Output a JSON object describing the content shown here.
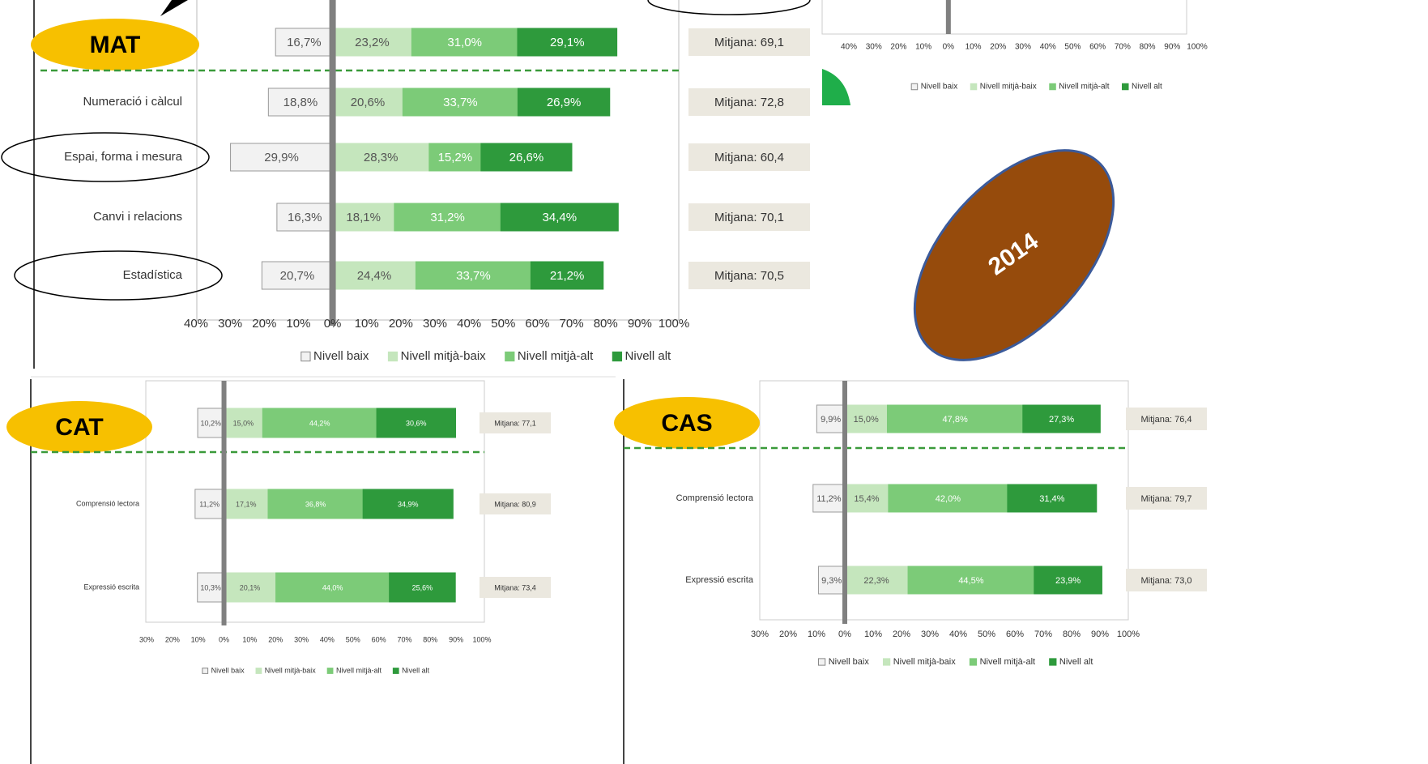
{
  "year": "2014",
  "chart_data": [
    {
      "type": "bar",
      "badge": "MAT",
      "categories": [
        null,
        "Numeració i càlcul",
        "Espai, forma i mesura",
        "Canvi i relacions",
        "Estadística"
      ],
      "series": [
        {
          "name": "Nivell baix",
          "color": "#f2f2f2",
          "values": [
            16.7,
            18.8,
            29.9,
            16.3,
            20.7
          ],
          "value_labels": [
            "16,7%",
            "18,8%",
            "29,9%",
            "16,3%",
            "20,7%"
          ]
        },
        {
          "name": "Nivell mitjà-baix",
          "color": "#c5e6bd",
          "values": [
            23.2,
            20.6,
            28.3,
            18.1,
            24.4
          ],
          "value_labels": [
            "23,2%",
            "20,6%",
            "28,3%",
            "18,1%",
            "24,4%"
          ]
        },
        {
          "name": "Nivell mitjà-alt",
          "color": "#7ccb78",
          "values": [
            31.0,
            33.7,
            15.2,
            31.2,
            33.7
          ],
          "value_labels": [
            "31,0%",
            "33,7%",
            "15,2%",
            "31,2%",
            "33,7%"
          ]
        },
        {
          "name": "Nivell alt",
          "color": "#2e9a3c",
          "values": [
            29.1,
            26.9,
            26.6,
            34.4,
            21.2
          ],
          "value_labels": [
            "29,1%",
            "26,9%",
            "26,6%",
            "34,4%",
            "21,2%"
          ]
        }
      ],
      "annotations": [
        "Mitjana: 69,1",
        "Mitjana: 72,8",
        "Mitjana: 60,4",
        "Mitjana: 70,1",
        "Mitjana: 70,5"
      ],
      "xlim": [
        -40,
        100
      ],
      "xticks": [
        {
          "value": -40,
          "label": "40%"
        },
        {
          "value": -30,
          "label": "30%"
        },
        {
          "value": -20,
          "label": "20%"
        },
        {
          "value": -10,
          "label": "10%"
        },
        {
          "value": 0,
          "label": "0%"
        },
        {
          "value": 10,
          "label": "10%"
        },
        {
          "value": 20,
          "label": "20%"
        },
        {
          "value": 30,
          "label": "30%"
        },
        {
          "value": 40,
          "label": "40%"
        },
        {
          "value": 50,
          "label": "50%"
        },
        {
          "value": 60,
          "label": "60%"
        },
        {
          "value": 70,
          "label": "70%"
        },
        {
          "value": 80,
          "label": "80%"
        },
        {
          "value": 90,
          "label": "90%"
        },
        {
          "value": 100,
          "label": "100%"
        }
      ]
    },
    {
      "type": "bar",
      "badge": "CAT",
      "categories": [
        null,
        "Comprensió lectora",
        "Expressió escrita"
      ],
      "series": [
        {
          "name": "Nivell baix",
          "color": "#f2f2f2",
          "values": [
            10.2,
            11.2,
            10.3
          ],
          "value_labels": [
            "10,2%",
            "11,2%",
            "10,3%"
          ]
        },
        {
          "name": "Nivell mitjà-baix",
          "color": "#c5e6bd",
          "values": [
            15.0,
            17.1,
            20.1
          ],
          "value_labels": [
            "15,0%",
            "17,1%",
            "20,1%"
          ]
        },
        {
          "name": "Nivell mitjà-alt",
          "color": "#7ccb78",
          "values": [
            44.2,
            36.8,
            44.0
          ],
          "value_labels": [
            "44,2%",
            "36,8%",
            "44,0%"
          ]
        },
        {
          "name": "Nivell alt",
          "color": "#2e9a3c",
          "values": [
            30.6,
            34.9,
            25.6
          ],
          "value_labels": [
            "30,6%",
            "34,9%",
            "25,6%"
          ]
        }
      ],
      "annotations": [
        "Mitjana: 77,1",
        "Mitjana: 80,9",
        "Mitjana: 73,4"
      ],
      "xlim": [
        -30,
        100
      ],
      "xticks": [
        {
          "value": -30,
          "label": "30%"
        },
        {
          "value": -20,
          "label": "20%"
        },
        {
          "value": -10,
          "label": "10%"
        },
        {
          "value": 0,
          "label": "0%"
        },
        {
          "value": 10,
          "label": "10%"
        },
        {
          "value": 20,
          "label": "20%"
        },
        {
          "value": 30,
          "label": "30%"
        },
        {
          "value": 40,
          "label": "40%"
        },
        {
          "value": 50,
          "label": "50%"
        },
        {
          "value": 60,
          "label": "60%"
        },
        {
          "value": 70,
          "label": "70%"
        },
        {
          "value": 80,
          "label": "80%"
        },
        {
          "value": 90,
          "label": "90%"
        },
        {
          "value": 100,
          "label": "100%"
        }
      ]
    },
    {
      "type": "bar",
      "badge": "CAS",
      "categories": [
        null,
        "Comprensió lectora",
        "Expressió escrita"
      ],
      "series": [
        {
          "name": "Nivell baix",
          "color": "#f2f2f2",
          "values": [
            9.9,
            11.2,
            9.3
          ],
          "value_labels": [
            "9,9%",
            "11,2%",
            "9,3%"
          ]
        },
        {
          "name": "Nivell mitjà-baix",
          "color": "#c5e6bd",
          "values": [
            15.0,
            15.4,
            22.3
          ],
          "value_labels": [
            "15,0%",
            "15,4%",
            "22,3%"
          ]
        },
        {
          "name": "Nivell mitjà-alt",
          "color": "#7ccb78",
          "values": [
            47.8,
            42.0,
            44.5
          ],
          "value_labels": [
            "47,8%",
            "42,0%",
            "44,5%"
          ]
        },
        {
          "name": "Nivell alt",
          "color": "#2e9a3c",
          "values": [
            27.3,
            31.4,
            23.9
          ],
          "value_labels": [
            "27,3%",
            "31,4%",
            "23,9%"
          ]
        }
      ],
      "annotations": [
        "Mitjana: 76,4",
        "Mitjana: 79,7",
        "Mitjana: 73,0"
      ],
      "xlim": [
        -30,
        100
      ],
      "xticks": [
        {
          "value": -30,
          "label": "30%"
        },
        {
          "value": -20,
          "label": "20%"
        },
        {
          "value": -10,
          "label": "10%"
        },
        {
          "value": 0,
          "label": "0%"
        },
        {
          "value": 10,
          "label": "10%"
        },
        {
          "value": 20,
          "label": "20%"
        },
        {
          "value": 30,
          "label": "30%"
        },
        {
          "value": 40,
          "label": "40%"
        },
        {
          "value": 50,
          "label": "50%"
        },
        {
          "value": 60,
          "label": "60%"
        },
        {
          "value": 70,
          "label": "70%"
        },
        {
          "value": 80,
          "label": "80%"
        },
        {
          "value": 90,
          "label": "90%"
        },
        {
          "value": 100,
          "label": "100%"
        }
      ]
    },
    {
      "type": "bar",
      "categories": [],
      "series": [
        {
          "name": "Nivell baix",
          "color": "#f2f2f2",
          "values": []
        },
        {
          "name": "Nivell mitjà-baix",
          "color": "#c5e6bd",
          "values": []
        },
        {
          "name": "Nivell mitjà-alt",
          "color": "#7ccb78",
          "values": []
        },
        {
          "name": "Nivell alt",
          "color": "#2e9a3c",
          "values": []
        }
      ],
      "xlim": [
        -40,
        100
      ],
      "xticks": [
        {
          "value": -40,
          "label": "40%"
        },
        {
          "value": -30,
          "label": "30%"
        },
        {
          "value": -20,
          "label": "20%"
        },
        {
          "value": -10,
          "label": "10%"
        },
        {
          "value": 0,
          "label": "0%"
        },
        {
          "value": 10,
          "label": "10%"
        },
        {
          "value": 20,
          "label": "20%"
        },
        {
          "value": 30,
          "label": "30%"
        },
        {
          "value": 40,
          "label": "40%"
        },
        {
          "value": 50,
          "label": "50%"
        },
        {
          "value": 60,
          "label": "60%"
        },
        {
          "value": 70,
          "label": "70%"
        },
        {
          "value": 80,
          "label": "80%"
        },
        {
          "value": 90,
          "label": "90%"
        },
        {
          "value": 100,
          "label": "100%"
        }
      ]
    }
  ]
}
